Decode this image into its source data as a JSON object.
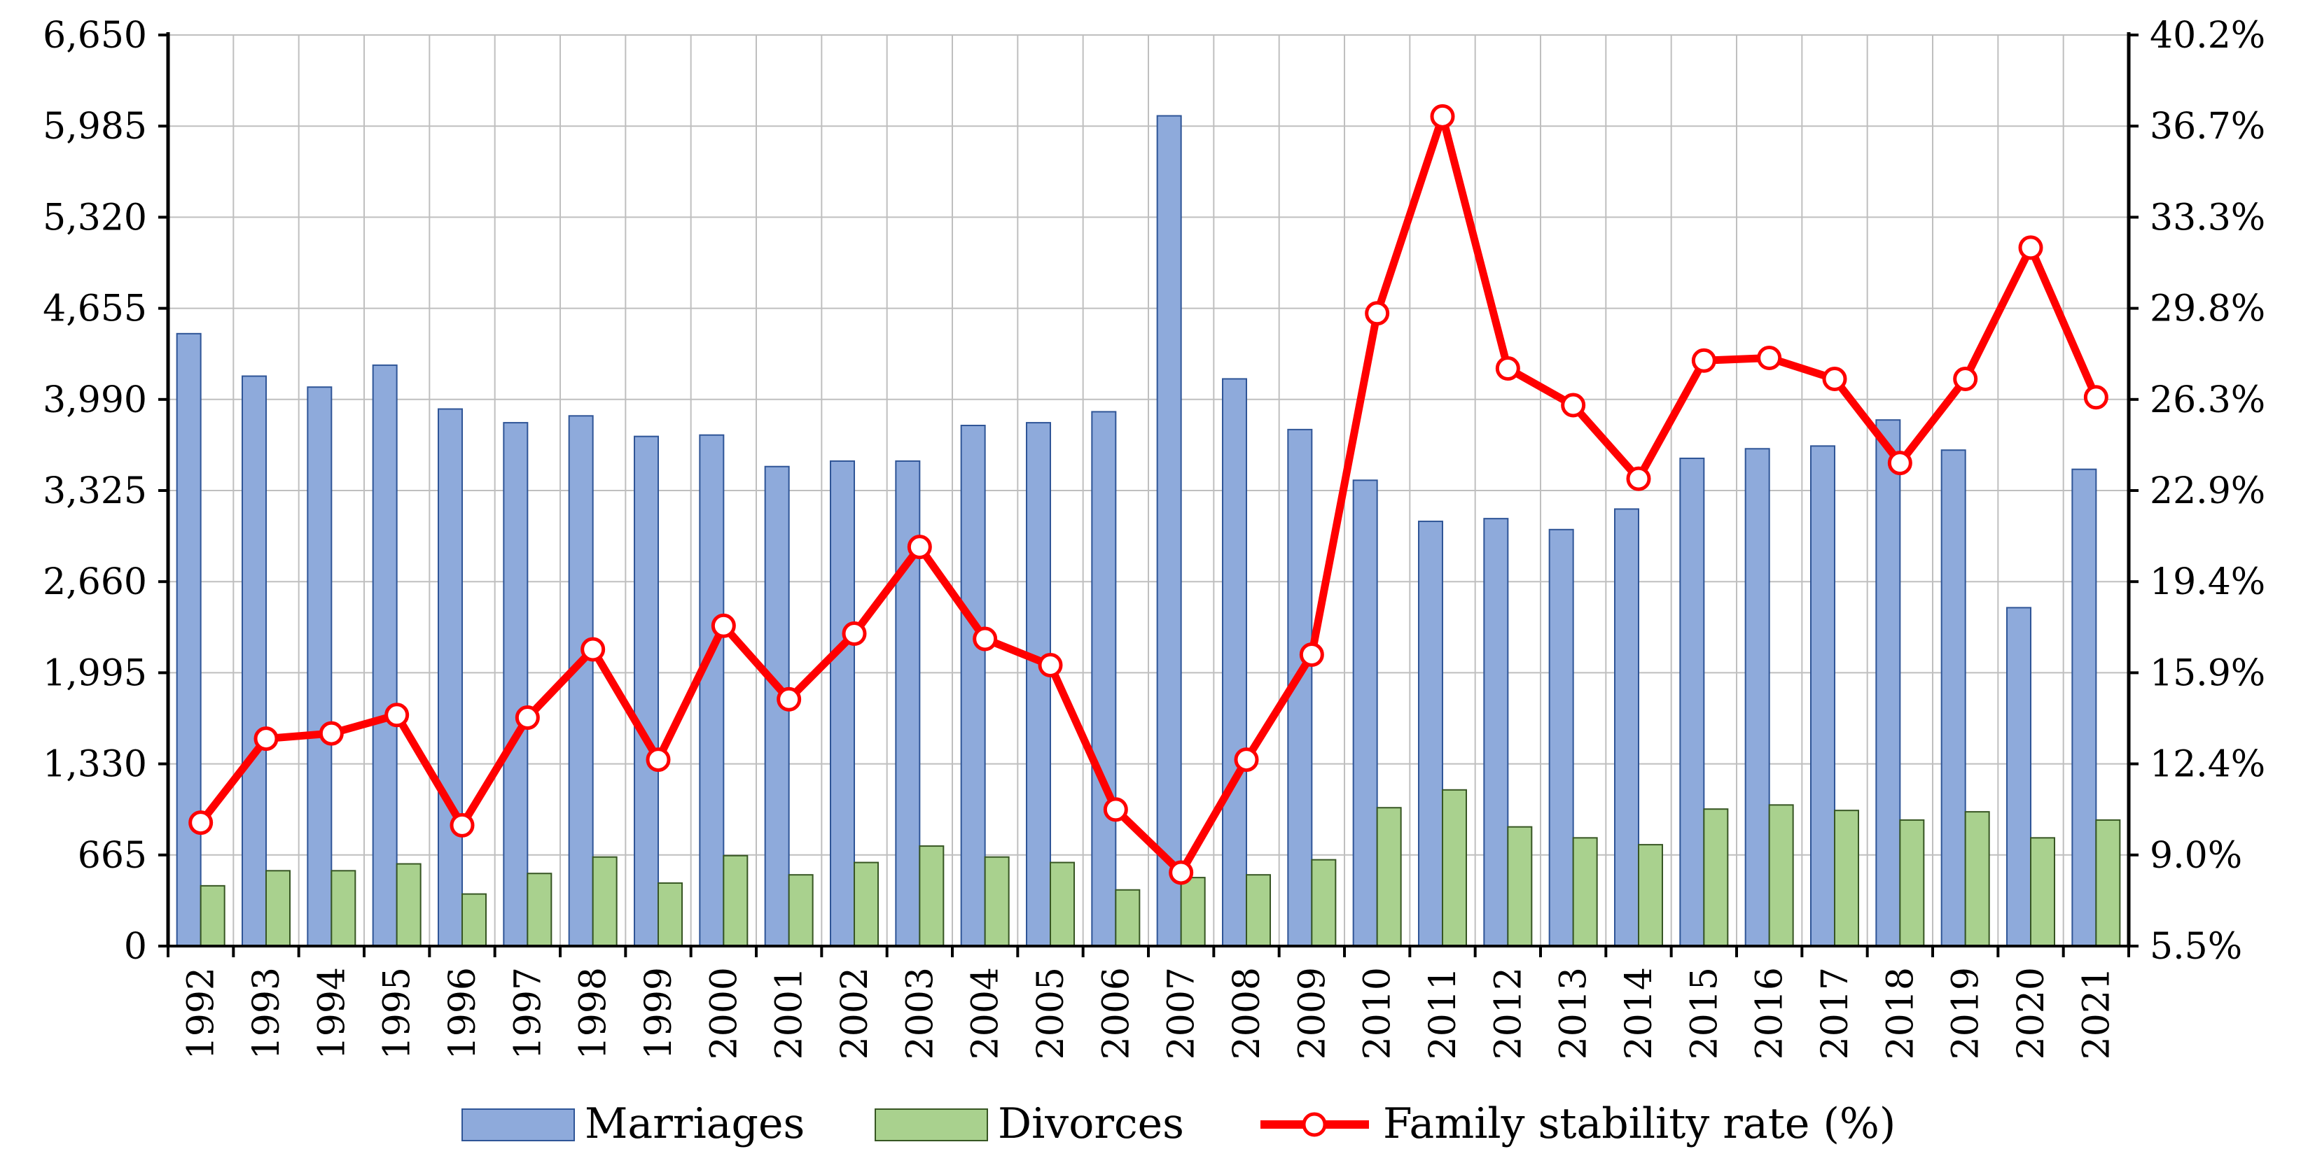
{
  "chart_data": {
    "type": "bar",
    "categories": [
      "1992",
      "1993",
      "1994",
      "1995",
      "1996",
      "1997",
      "1998",
      "1999",
      "2000",
      "2001",
      "2002",
      "2003",
      "2004",
      "2005",
      "2006",
      "2007",
      "2008",
      "2009",
      "2010",
      "2011",
      "2012",
      "2013",
      "2014",
      "2015",
      "2016",
      "2017",
      "2018",
      "2019",
      "2020",
      "2021"
    ],
    "series": [
      {
        "name": "Marriages",
        "type": "bar",
        "axis": "left",
        "color": "#8eaadb",
        "edge": "#2f5597",
        "values": [
          4470,
          4160,
          4080,
          4240,
          3920,
          3820,
          3870,
          3720,
          3730,
          3500,
          3540,
          3540,
          3800,
          3820,
          3900,
          6060,
          4140,
          3770,
          3400,
          3100,
          3120,
          3040,
          3190,
          3560,
          3630,
          3650,
          3840,
          3620,
          2470,
          3480
        ]
      },
      {
        "name": "Divorces",
        "type": "bar",
        "axis": "left",
        "color": "#a9d18e",
        "edge": "#375623",
        "values": [
          440,
          550,
          550,
          600,
          380,
          530,
          650,
          460,
          660,
          520,
          610,
          730,
          650,
          610,
          410,
          500,
          520,
          630,
          1010,
          1140,
          870,
          790,
          740,
          1000,
          1030,
          990,
          920,
          980,
          790,
          920
        ]
      },
      {
        "name": "Family stability rate (%)",
        "type": "line",
        "axis": "right",
        "color": "#ff0000",
        "values": [
          10.2,
          13.4,
          13.6,
          14.3,
          10.1,
          14.2,
          16.8,
          12.6,
          17.7,
          14.9,
          17.4,
          20.7,
          17.2,
          16.2,
          10.7,
          8.3,
          12.6,
          16.6,
          29.6,
          37.1,
          27.5,
          26.1,
          23.3,
          27.8,
          27.9,
          27.1,
          23.9,
          27.1,
          32.1,
          26.4
        ]
      }
    ],
    "y_left": {
      "lim": [
        0,
        6650
      ],
      "ticks": [
        "0",
        "665",
        "1,330",
        "1,995",
        "2,660",
        "3,325",
        "3,990",
        "4,655",
        "5,320",
        "5,985",
        "6,650"
      ]
    },
    "y_right": {
      "lim": [
        5.5,
        40.2
      ],
      "ticks": [
        "5.5%",
        "9.0%",
        "12.4%",
        "15.9%",
        "19.4%",
        "22.9%",
        "26.3%",
        "29.8%",
        "33.3%",
        "36.7%",
        "40.2%"
      ]
    },
    "grid": true,
    "legend_position": "bottom",
    "legend": [
      "Marriages",
      "Divorces",
      "Family stability rate (%)"
    ]
  }
}
